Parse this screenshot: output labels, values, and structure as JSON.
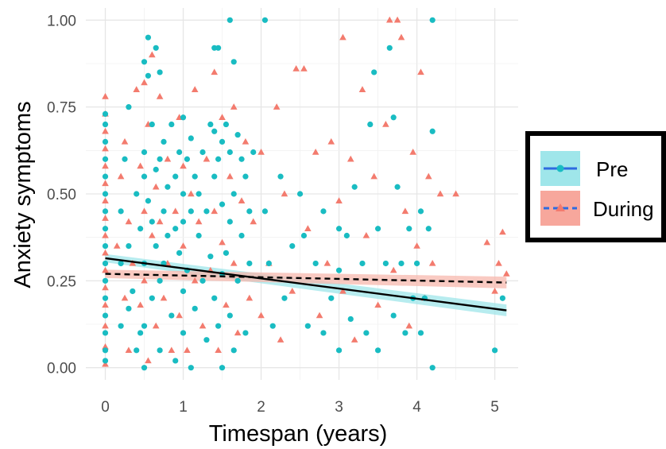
{
  "chart_data": {
    "type": "scatter",
    "title": "",
    "xlabel": "Timespan (years)",
    "ylabel": "Anxiety symptoms",
    "xlim": [
      -0.25,
      5.3
    ],
    "ylim": [
      -0.035,
      1.035
    ],
    "x_ticks": [
      "0",
      "1",
      "2",
      "3",
      "4",
      "5"
    ],
    "y_ticks": [
      "0.00",
      "0.25",
      "0.50",
      "0.75",
      "1.00"
    ],
    "grid": true,
    "legend_position": "right",
    "legend": [
      {
        "label": "Pre",
        "marker": "circle",
        "line": "solid"
      },
      {
        "label": "During",
        "marker": "triangle",
        "line": "dashed"
      }
    ],
    "colors": {
      "Pre": "#19bcc2",
      "During": "#f37b6e",
      "trend": "#000000"
    },
    "series": [
      {
        "name": "Pre",
        "points": [
          [
            0,
            0.02
          ],
          [
            0,
            0.05
          ],
          [
            0,
            0.1
          ],
          [
            0,
            0.15
          ],
          [
            0,
            0.2
          ],
          [
            0,
            0.25
          ],
          [
            0,
            0.3
          ],
          [
            0,
            0.35
          ],
          [
            0,
            0.4
          ],
          [
            0,
            0.45
          ],
          [
            0,
            0.5
          ],
          [
            0,
            0.55
          ],
          [
            0,
            0.6
          ],
          [
            0,
            0.65
          ],
          [
            0,
            0.7
          ],
          [
            0,
            0.73
          ],
          [
            0.2,
            0.45
          ],
          [
            0.2,
            0.3
          ],
          [
            0.2,
            0.12
          ],
          [
            0.25,
            0.6
          ],
          [
            0.3,
            0.75
          ],
          [
            0.3,
            0.35
          ],
          [
            0.3,
            0.17
          ],
          [
            0.35,
            0.22
          ],
          [
            0.4,
            0.5
          ],
          [
            0.4,
            0.05
          ],
          [
            0.45,
            0.4
          ],
          [
            0.45,
            0.1
          ],
          [
            0.5,
            0.88
          ],
          [
            0.5,
            0.62
          ],
          [
            0.5,
            0.55
          ],
          [
            0.5,
            0.3
          ],
          [
            0.5,
            0.12
          ],
          [
            0.5,
            0
          ],
          [
            0.55,
            0.95
          ],
          [
            0.55,
            0.84
          ],
          [
            0.55,
            0.48
          ],
          [
            0.6,
            0.7
          ],
          [
            0.6,
            0.42
          ],
          [
            0.6,
            0.2
          ],
          [
            0.65,
            0.92
          ],
          [
            0.65,
            0.57
          ],
          [
            0.65,
            0.35
          ],
          [
            0.7,
            0.85
          ],
          [
            0.7,
            0.6
          ],
          [
            0.7,
            0.25
          ],
          [
            0.7,
            0.05
          ],
          [
            0.75,
            0.65
          ],
          [
            0.75,
            0.45
          ],
          [
            0.75,
            0.3
          ],
          [
            0.8,
            0.52
          ],
          [
            0.8,
            0.38
          ],
          [
            0.85,
            0.7
          ],
          [
            0.85,
            0.15
          ],
          [
            0.9,
            0.55
          ],
          [
            0.9,
            0.4
          ],
          [
            0.9,
            0.02
          ],
          [
            0.95,
            0.62
          ],
          [
            0.95,
            0.33
          ],
          [
            1,
            0.72
          ],
          [
            1,
            0.5
          ],
          [
            1,
            0.42
          ],
          [
            1,
            0.22
          ],
          [
            1,
            0.1
          ],
          [
            1.05,
            0.6
          ],
          [
            1.05,
            0.28
          ],
          [
            1.1,
            0.66
          ],
          [
            1.1,
            0.45
          ],
          [
            1.1,
            0
          ],
          [
            1.15,
            0.55
          ],
          [
            1.15,
            0.17
          ],
          [
            1.2,
            0.5
          ],
          [
            1.2,
            0.38
          ],
          [
            1.25,
            0.62
          ],
          [
            1.25,
            0.25
          ],
          [
            1.3,
            0.45
          ],
          [
            1.3,
            0.08
          ],
          [
            1.35,
            0.7
          ],
          [
            1.35,
            0.32
          ],
          [
            1.4,
            0.92
          ],
          [
            1.4,
            0.68
          ],
          [
            1.4,
            0.55
          ],
          [
            1.4,
            0.2
          ],
          [
            1.45,
            0.92
          ],
          [
            1.45,
            0.6
          ],
          [
            1.45,
            0.12
          ],
          [
            1.5,
            0.65
          ],
          [
            1.5,
            0.47
          ],
          [
            1.5,
            0.27
          ],
          [
            1.5,
            0
          ],
          [
            1.55,
            0.7
          ],
          [
            1.55,
            0.33
          ],
          [
            1.6,
            1
          ],
          [
            1.6,
            0.62
          ],
          [
            1.6,
            0.42
          ],
          [
            1.6,
            0.15
          ],
          [
            1.65,
            0.88
          ],
          [
            1.65,
            0.5
          ],
          [
            1.65,
            0.05
          ],
          [
            1.7,
            0.67
          ],
          [
            1.7,
            0.25
          ],
          [
            1.75,
            0.6
          ],
          [
            1.75,
            0.38
          ],
          [
            1.8,
            0.55
          ],
          [
            1.8,
            0.1
          ],
          [
            1.85,
            0.45
          ],
          [
            1.85,
            0.3
          ],
          [
            1.9,
            0.62
          ],
          [
            2.05,
            1
          ],
          [
            2.05,
            0.45
          ],
          [
            2.1,
            0.3
          ],
          [
            2.15,
            0.12
          ],
          [
            2.25,
            0.55
          ],
          [
            2.3,
            0.2
          ],
          [
            2.4,
            0.35
          ],
          [
            2.5,
            0.5
          ],
          [
            2.55,
            0.38
          ],
          [
            2.6,
            0.12
          ],
          [
            2.7,
            0.3
          ],
          [
            2.8,
            0.45
          ],
          [
            2.8,
            0.1
          ],
          [
            2.9,
            0.2
          ],
          [
            3,
            0.4
          ],
          [
            3,
            0.28
          ],
          [
            3,
            0.05
          ],
          [
            3.1,
            0.38
          ],
          [
            3.15,
            0.14
          ],
          [
            3.2,
            0.52
          ],
          [
            3.3,
            0.3
          ],
          [
            3.35,
            0.1
          ],
          [
            3.4,
            0.7
          ],
          [
            3.45,
            0.85
          ],
          [
            3.5,
            0.4
          ],
          [
            3.5,
            0.05
          ],
          [
            3.6,
            0.3
          ],
          [
            3.65,
            0.92
          ],
          [
            3.7,
            0.72
          ],
          [
            3.7,
            0.15
          ],
          [
            3.75,
            0.52
          ],
          [
            3.8,
            0.3
          ],
          [
            3.85,
            0.1
          ],
          [
            3.9,
            0.4
          ],
          [
            3.95,
            0.2
          ],
          [
            4,
            0.3
          ],
          [
            4.05,
            0.45
          ],
          [
            4.05,
            0.1
          ],
          [
            4.1,
            0.2
          ],
          [
            4.15,
            0.4
          ],
          [
            4.2,
            1
          ],
          [
            4.2,
            0.68
          ],
          [
            4.2,
            0
          ],
          [
            5,
            0.05
          ],
          [
            5.1,
            0.2
          ]
        ]
      },
      {
        "name": "During",
        "points": [
          [
            0,
            0.01
          ],
          [
            0,
            0.06
          ],
          [
            0,
            0.12
          ],
          [
            0,
            0.18
          ],
          [
            0,
            0.23
          ],
          [
            0,
            0.28
          ],
          [
            0,
            0.33
          ],
          [
            0,
            0.38
          ],
          [
            0,
            0.43
          ],
          [
            0,
            0.48
          ],
          [
            0,
            0.53
          ],
          [
            0,
            0.58
          ],
          [
            0,
            0.63
          ],
          [
            0,
            0.68
          ],
          [
            0,
            0.73
          ],
          [
            0,
            0.78
          ],
          [
            0.15,
            0.35
          ],
          [
            0.2,
            0.55
          ],
          [
            0.25,
            0.65
          ],
          [
            0.25,
            0.2
          ],
          [
            0.3,
            0.42
          ],
          [
            0.3,
            0.05
          ],
          [
            0.35,
            0.3
          ],
          [
            0.4,
            0.8
          ],
          [
            0.45,
            0.58
          ],
          [
            0.45,
            0.18
          ],
          [
            0.5,
            0.82
          ],
          [
            0.5,
            0.45
          ],
          [
            0.5,
            0.25
          ],
          [
            0.55,
            0.7
          ],
          [
            0.55,
            0.02
          ],
          [
            0.6,
            0.9
          ],
          [
            0.6,
            0.38
          ],
          [
            0.65,
            0.52
          ],
          [
            0.65,
            0.12
          ],
          [
            0.7,
            0.78
          ],
          [
            0.7,
            0.42
          ],
          [
            0.75,
            0.2
          ],
          [
            0.8,
            0.6
          ],
          [
            0.8,
            0.3
          ],
          [
            0.85,
            0.05
          ],
          [
            0.9,
            0.45
          ],
          [
            0.95,
            0.72
          ],
          [
            0.95,
            0.15
          ],
          [
            1,
            0.58
          ],
          [
            1,
            0.35
          ],
          [
            1.05,
            0.05
          ],
          [
            1.1,
            0.5
          ],
          [
            1.15,
            0.8
          ],
          [
            1.15,
            0.25
          ],
          [
            1.2,
            0.42
          ],
          [
            1.25,
            0.12
          ],
          [
            1.3,
            0.6
          ],
          [
            1.35,
            0.28
          ],
          [
            1.4,
            0.85
          ],
          [
            1.4,
            0.45
          ],
          [
            1.45,
            0.05
          ],
          [
            1.5,
            0.72
          ],
          [
            1.5,
            0.36
          ],
          [
            1.55,
            0.18
          ],
          [
            1.6,
            0.55
          ],
          [
            1.65,
            0.75
          ],
          [
            1.65,
            0.3
          ],
          [
            1.7,
            0.1
          ],
          [
            1.75,
            0.48
          ],
          [
            1.8,
            0.65
          ],
          [
            1.85,
            0.2
          ],
          [
            1.9,
            0.42
          ],
          [
            2,
            0.62
          ],
          [
            2,
            0.15
          ],
          [
            2.1,
            0.3
          ],
          [
            2.2,
            0.75
          ],
          [
            2.25,
            0.08
          ],
          [
            2.3,
            0.5
          ],
          [
            2.4,
            0.22
          ],
          [
            2.45,
            0.86
          ],
          [
            2.55,
            0.86
          ],
          [
            2.6,
            0.4
          ],
          [
            2.7,
            0.62
          ],
          [
            2.75,
            0.15
          ],
          [
            2.85,
            0.3
          ],
          [
            2.9,
            0.65
          ],
          [
            3,
            0.48
          ],
          [
            3.05,
            0.95
          ],
          [
            3.05,
            0.22
          ],
          [
            3.15,
            0.6
          ],
          [
            3.2,
            0.08
          ],
          [
            3.3,
            0.8
          ],
          [
            3.35,
            0.38
          ],
          [
            3.45,
            0.55
          ],
          [
            3.5,
            0.18
          ],
          [
            3.6,
            0.7
          ],
          [
            3.65,
            1
          ],
          [
            3.75,
            1
          ],
          [
            3.7,
            0.28
          ],
          [
            3.8,
            0.95
          ],
          [
            3.85,
            0.45
          ],
          [
            3.9,
            0.12
          ],
          [
            3.95,
            0.62
          ],
          [
            4,
            0.35
          ],
          [
            4.05,
            0.85
          ],
          [
            4.1,
            0.2
          ],
          [
            4.15,
            0.55
          ],
          [
            4.2,
            0.3
          ],
          [
            4.3,
            0.5
          ],
          [
            4.5,
            0.5
          ],
          [
            4.9,
            0.36
          ],
          [
            5,
            0.22
          ],
          [
            5.05,
            0.3
          ],
          [
            5.1,
            0.39
          ],
          [
            5.15,
            0.27
          ]
        ]
      }
    ],
    "trend_lines": [
      {
        "name": "Pre",
        "x": [
          0,
          5.15
        ],
        "y": [
          0.315,
          0.165
        ],
        "ci": 0.012
      },
      {
        "name": "During",
        "x": [
          0,
          5.15
        ],
        "y": [
          0.27,
          0.245
        ],
        "ci": 0.012
      }
    ]
  }
}
